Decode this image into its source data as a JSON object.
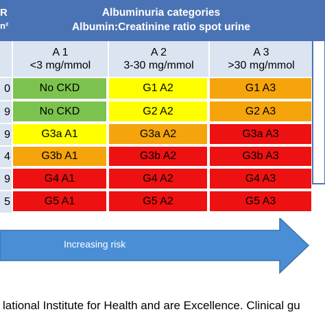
{
  "header": {
    "left_top": "R",
    "left_unit": "n²",
    "title_line1": "Albuminuria categories",
    "title_line2": "Albumin:Creatinine ratio spot urine"
  },
  "categories": [
    {
      "code": "A 1",
      "range": "<3 mg/mmol"
    },
    {
      "code": "A 2",
      "range": "3-30 mg/mmol"
    },
    {
      "code": "A 3",
      "range": ">30 mg/mmol"
    }
  ],
  "rows": [
    {
      "stage_fragment": "0",
      "cells": [
        "No CKD",
        "G1 A2",
        "G1 A3"
      ]
    },
    {
      "stage_fragment": "9",
      "cells": [
        "No CKD",
        "G2 A2",
        "G2 A3"
      ]
    },
    {
      "stage_fragment": "9",
      "cells": [
        "G3a A1",
        "G3a A2",
        "G3a A3"
      ]
    },
    {
      "stage_fragment": "4",
      "cells": [
        "G3b A1",
        "G3b A2",
        "G3b A3"
      ]
    },
    {
      "stage_fragment": "9",
      "cells": [
        "G4 A1",
        "G4 A2",
        "G4 A3"
      ]
    },
    {
      "stage_fragment": "5",
      "cells": [
        "G5 A1",
        "G5 A2",
        "G5 A3"
      ]
    }
  ],
  "risk_colors": {
    "green": "#7cc24e",
    "yellow": "#ffff00",
    "orange": "#f5a40c",
    "red": "#ee1111"
  },
  "cell_color_keys": [
    [
      "green",
      "yellow",
      "orange"
    ],
    [
      "green",
      "yellow",
      "orange"
    ],
    [
      "yellow",
      "orange",
      "red"
    ],
    [
      "orange",
      "red",
      "red"
    ],
    [
      "red",
      "red",
      "red"
    ],
    [
      "red",
      "red",
      "red"
    ]
  ],
  "arrow": {
    "label": "Increasing risk",
    "color": "#4a8fd6"
  },
  "caption": "lational Institute for Health and are Excellence. Clinical gu"
}
